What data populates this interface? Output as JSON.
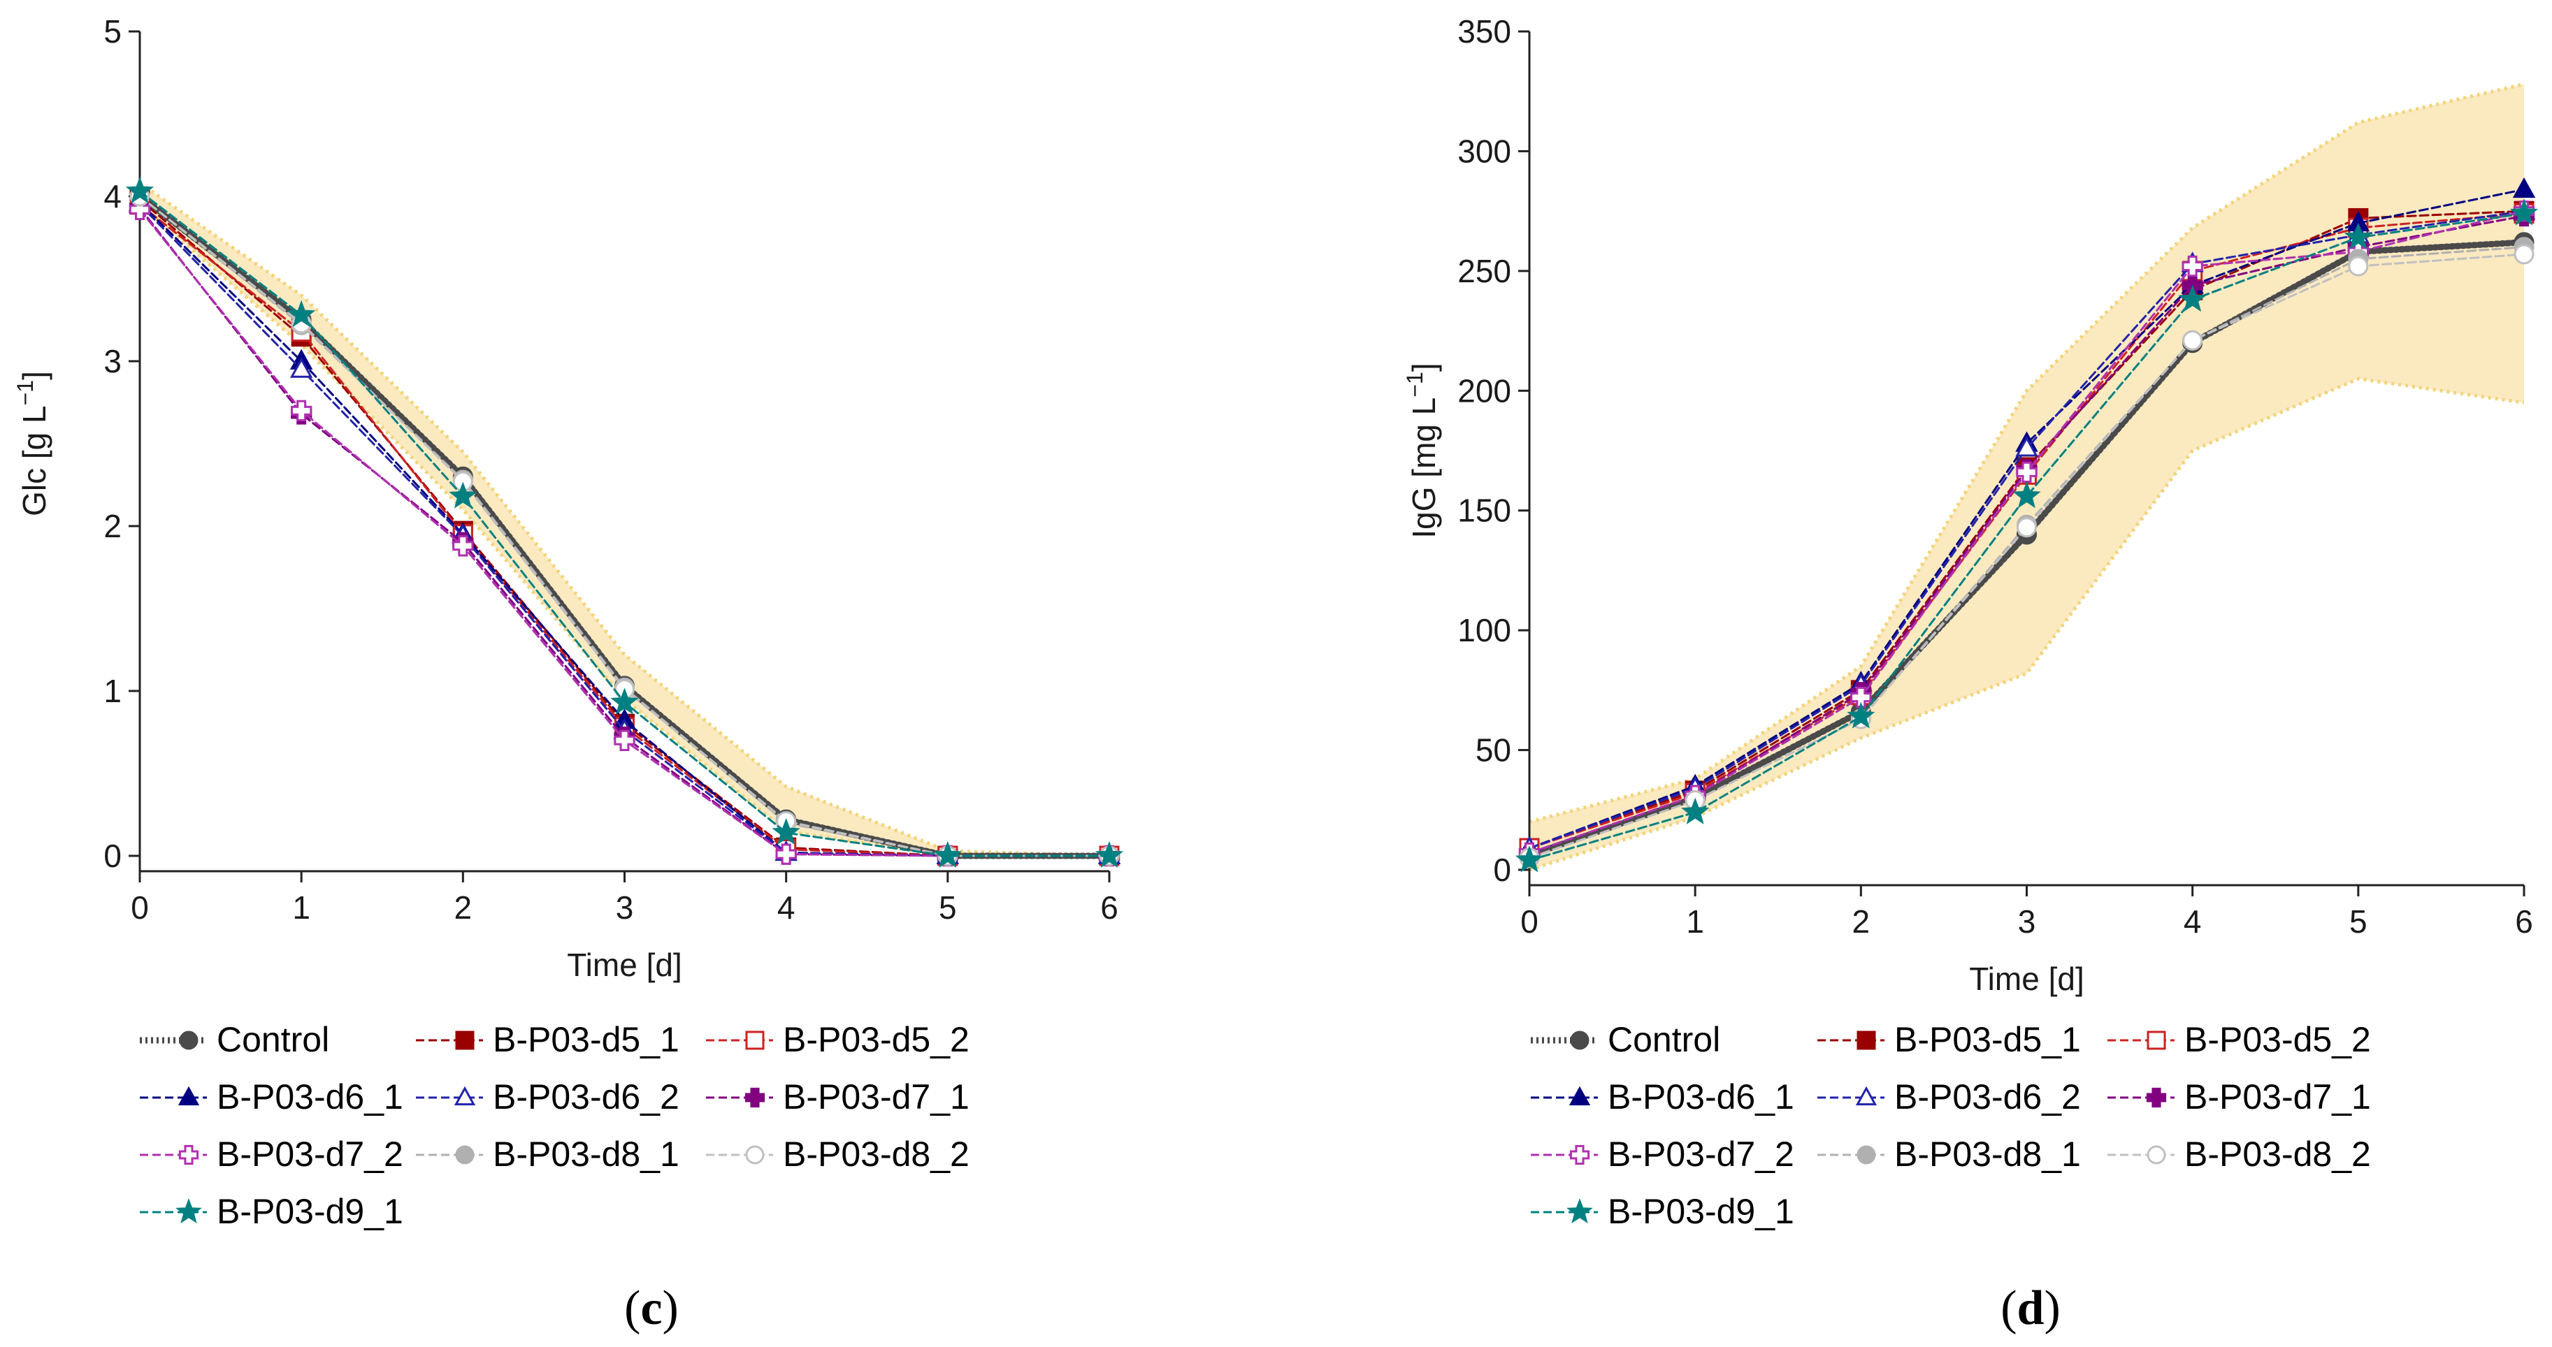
{
  "chart_data": [
    {
      "type": "line",
      "panel_label": "c",
      "title": "",
      "xlabel": "Time [d]",
      "ylabel": "Glc [g L",
      "ylabel_sup": "−1",
      "ylabel_close": "]",
      "xlim": [
        0,
        6
      ],
      "ylim": [
        0,
        5
      ],
      "xticks": [
        "0",
        "1",
        "2",
        "3",
        "4",
        "5",
        "6"
      ],
      "yticks": [
        "0",
        "1",
        "2",
        "3",
        "4",
        "5"
      ],
      "x": [
        0,
        1,
        2,
        3,
        4,
        5,
        6
      ],
      "band": {
        "upper": [
          4.08,
          3.4,
          2.45,
          1.22,
          0.42,
          0.03,
          0.0
        ],
        "lower": [
          3.95,
          3.1,
          2.1,
          0.95,
          0.15,
          0.0,
          0.0
        ]
      },
      "series": [
        {
          "name": "Control",
          "values": [
            4.0,
            3.25,
            2.3,
            1.03,
            0.22,
            0.0,
            0.0
          ]
        },
        {
          "name": "B-P03-d5_1",
          "values": [
            3.98,
            3.15,
            1.97,
            0.8,
            0.05,
            0.0,
            0.0
          ]
        },
        {
          "name": "B-P03-d5_2",
          "values": [
            3.95,
            3.18,
            1.95,
            0.78,
            0.04,
            0.0,
            0.0
          ]
        },
        {
          "name": "B-P03-d6_1",
          "values": [
            3.96,
            3.0,
            1.95,
            0.82,
            0.02,
            0.0,
            0.0
          ]
        },
        {
          "name": "B-P03-d6_2",
          "values": [
            3.95,
            2.95,
            1.94,
            0.76,
            0.02,
            0.0,
            0.0
          ]
        },
        {
          "name": "B-P03-d7_1",
          "values": [
            3.93,
            2.68,
            1.9,
            0.72,
            0.01,
            0.0,
            0.0
          ]
        },
        {
          "name": "B-P03-d7_2",
          "values": [
            3.92,
            2.7,
            1.88,
            0.7,
            0.01,
            0.0,
            0.0
          ]
        },
        {
          "name": "B-P03-d8_1",
          "values": [
            4.0,
            3.22,
            2.28,
            1.02,
            0.2,
            0.0,
            0.0
          ]
        },
        {
          "name": "B-P03-d8_2",
          "values": [
            4.0,
            3.23,
            2.27,
            1.01,
            0.21,
            0.0,
            0.0
          ]
        },
        {
          "name": "B-P03-d9_1",
          "values": [
            4.03,
            3.28,
            2.18,
            0.93,
            0.14,
            0.0,
            0.0
          ]
        }
      ],
      "legend": "below"
    },
    {
      "type": "line",
      "panel_label": "d",
      "title": "",
      "xlabel": "Time [d]",
      "ylabel": "IgG [mg L",
      "ylabel_sup": "−1",
      "ylabel_close": "]",
      "xlim": [
        0,
        6
      ],
      "ylim": [
        0,
        350
      ],
      "xticks": [
        "0",
        "1",
        "2",
        "3",
        "4",
        "5",
        "6"
      ],
      "yticks": [
        "0",
        "50",
        "100",
        "150",
        "200",
        "250",
        "300",
        "350"
      ],
      "x": [
        0,
        1,
        2,
        3,
        4,
        5,
        6
      ],
      "band": {
        "upper": [
          20,
          38,
          85,
          200,
          268,
          312,
          328
        ],
        "lower": [
          0,
          22,
          55,
          82,
          175,
          205,
          195
        ]
      },
      "series": [
        {
          "name": "Control",
          "values": [
            6,
            30,
            66,
            140,
            220,
            258,
            262
          ]
        },
        {
          "name": "B-P03-d5_1",
          "values": [
            9,
            33,
            75,
            168,
            242,
            272,
            275
          ]
        },
        {
          "name": "B-P03-d5_2",
          "values": [
            9,
            32,
            73,
            165,
            250,
            268,
            274
          ]
        },
        {
          "name": "B-P03-d6_1",
          "values": [
            9,
            35,
            78,
            178,
            244,
            270,
            284
          ]
        },
        {
          "name": "B-P03-d6_2",
          "values": [
            9,
            34,
            77,
            176,
            253,
            265,
            275
          ]
        },
        {
          "name": "B-P03-d7_1",
          "values": [
            7,
            31,
            74,
            167,
            244,
            260,
            273
          ]
        },
        {
          "name": "B-P03-d7_2",
          "values": [
            7,
            31,
            72,
            166,
            252,
            258,
            275
          ]
        },
        {
          "name": "B-P03-d8_1",
          "values": [
            5,
            29,
            63,
            144,
            221,
            255,
            260
          ]
        },
        {
          "name": "B-P03-d8_2",
          "values": [
            5,
            29,
            63,
            143,
            221,
            252,
            257
          ]
        },
        {
          "name": "B-P03-d9_1",
          "values": [
            4,
            24,
            64,
            156,
            238,
            264,
            274
          ]
        }
      ],
      "legend": "below"
    }
  ],
  "series_styles": [
    {
      "name": "Control",
      "color": "#4a4a4a",
      "marker": "circle",
      "fill": true,
      "dash": "3,5",
      "width": 9
    },
    {
      "name": "B-P03-d5_1",
      "color": "#990000",
      "marker": "square",
      "fill": true,
      "dash": "12,6",
      "width": 3
    },
    {
      "name": "B-P03-d5_2",
      "color": "#cc2222",
      "marker": "square",
      "fill": false,
      "dash": "12,6",
      "width": 3
    },
    {
      "name": "B-P03-d6_1",
      "color": "#000080",
      "marker": "triangle",
      "fill": true,
      "dash": "12,6",
      "width": 3
    },
    {
      "name": "B-P03-d6_2",
      "color": "#2222aa",
      "marker": "triangle",
      "fill": false,
      "dash": "12,6",
      "width": 3
    },
    {
      "name": "B-P03-d7_1",
      "color": "#800080",
      "marker": "plus",
      "fill": true,
      "dash": "12,6",
      "width": 3
    },
    {
      "name": "B-P03-d7_2",
      "color": "#b030b0",
      "marker": "plus",
      "fill": false,
      "dash": "12,6",
      "width": 3
    },
    {
      "name": "B-P03-d8_1",
      "color": "#b0b0b0",
      "marker": "circle",
      "fill": true,
      "dash": "12,6",
      "width": 3
    },
    {
      "name": "B-P03-d8_2",
      "color": "#c0c0c0",
      "marker": "circle",
      "fill": false,
      "dash": "12,6",
      "width": 3
    },
    {
      "name": "B-P03-d9_1",
      "color": "#008080",
      "marker": "star",
      "fill": true,
      "dash": "12,6",
      "width": 3
    }
  ],
  "band_fill": "#fbe9c0",
  "band_edge": "#f2d47a"
}
